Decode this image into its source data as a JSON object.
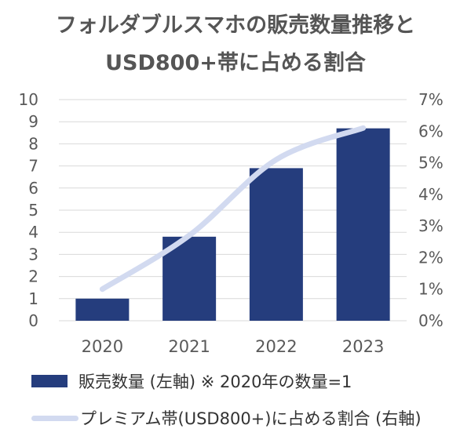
{
  "title_line1": "フォルダブルスマホの販売数量推移と",
  "title_line2": "USD800+帯に占める割合",
  "legend": {
    "bar_label": "販売数量 (左軸) ※ 2020年の数量=1",
    "line_label": "プレミアム帯(USD800+)に占める割合 (右軸)"
  },
  "colors": {
    "bar": "#253D7D",
    "line": "#D2DAF0",
    "grid": "#D9D9D9",
    "text": "#595959"
  },
  "chart_data": {
    "type": "bar",
    "categories": [
      "2020",
      "2021",
      "2022",
      "2023"
    ],
    "series": [
      {
        "name": "販売数量 (左軸) ※ 2020年の数量=1",
        "type": "bar",
        "axis": "left",
        "values": [
          1.0,
          3.8,
          6.9,
          8.7
        ]
      },
      {
        "name": "プレミアム帯(USD800+)に占める割合 (右軸)",
        "type": "line",
        "axis": "right",
        "values": [
          1.0,
          2.7,
          5.1,
          6.1
        ]
      }
    ],
    "y_left": {
      "min": 0,
      "max": 10,
      "ticks": [
        "0",
        "1",
        "2",
        "3",
        "4",
        "5",
        "6",
        "7",
        "8",
        "9",
        "10"
      ]
    },
    "y_right": {
      "min": 0,
      "max": 7,
      "ticks": [
        "0%",
        "1%",
        "2%",
        "3%",
        "4%",
        "5%",
        "6%",
        "7%"
      ]
    },
    "grid": true,
    "legend_position": "bottom"
  }
}
